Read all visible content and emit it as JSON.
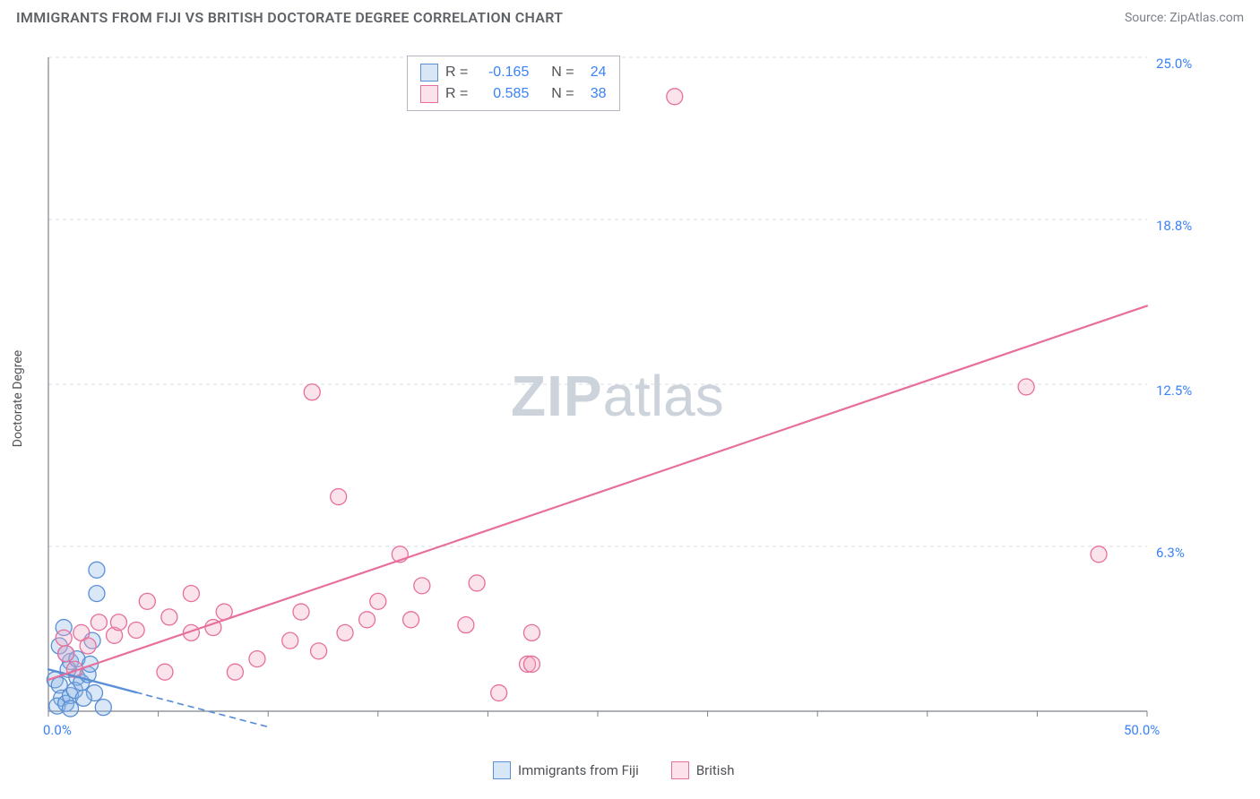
{
  "title": "IMMIGRANTS FROM FIJI VS BRITISH DOCTORATE DEGREE CORRELATION CHART",
  "source": "Source: ZipAtlas.com",
  "y_axis_label": "Doctorate Degree",
  "watermark": {
    "zip": "ZIP",
    "atlas": "atlas"
  },
  "chart": {
    "type": "scatter",
    "xlim": [
      0,
      50
    ],
    "ylim": [
      0,
      25
    ],
    "x_ticks": [
      0,
      5,
      10,
      15,
      20,
      25,
      30,
      35,
      40,
      45,
      50
    ],
    "x_tick_labels_shown": {
      "0": "0.0%",
      "50": "50.0%"
    },
    "y_ticks": [
      6.3,
      12.5,
      18.8,
      25.0
    ],
    "y_tick_labels": [
      "6.3%",
      "12.5%",
      "18.8%",
      "25.0%"
    ],
    "grid_color": "#d9dde4",
    "grid_dash": "4,4",
    "axis_color": "#7d828b",
    "background_color": "#ffffff",
    "marker_radius": 9,
    "marker_stroke_width": 1.3,
    "marker_fill_opacity": 0.32
  },
  "series": [
    {
      "name": "Immigrants from Fiji",
      "color_stroke": "#5a8fd6",
      "color_fill": "#8db4e2",
      "r": "-0.165",
      "n": "24",
      "trend": {
        "x1": 0,
        "y1": 1.6,
        "x2": 10,
        "y2": -0.6,
        "solid_until_x": 4.0,
        "width": 2.4
      },
      "points": [
        [
          0.3,
          1.2
        ],
        [
          0.5,
          1.0
        ],
        [
          0.6,
          0.5
        ],
        [
          0.4,
          0.2
        ],
        [
          0.8,
          0.3
        ],
        [
          1.0,
          0.6
        ],
        [
          1.3,
          1.3
        ],
        [
          1.0,
          1.9
        ],
        [
          0.5,
          2.5
        ],
        [
          0.8,
          2.2
        ],
        [
          1.2,
          0.8
        ],
        [
          1.5,
          1.1
        ],
        [
          1.8,
          1.4
        ],
        [
          2.0,
          2.7
        ],
        [
          2.1,
          0.7
        ],
        [
          2.5,
          0.15
        ],
        [
          2.2,
          5.4
        ],
        [
          2.2,
          4.5
        ],
        [
          0.7,
          3.2
        ],
        [
          0.9,
          1.6
        ],
        [
          1.3,
          2.0
        ],
        [
          1.6,
          0.5
        ],
        [
          1.0,
          0.1
        ],
        [
          1.9,
          1.8
        ]
      ]
    },
    {
      "name": "British",
      "color_stroke": "#e76f9d",
      "color_fill": "#f4a8c2",
      "r": "0.585",
      "n": "38",
      "trend": {
        "x1": 0,
        "y1": 1.2,
        "x2": 50,
        "y2": 15.5,
        "solid_until_x": 50,
        "width": 2.2
      },
      "points": [
        [
          0.7,
          2.8
        ],
        [
          0.8,
          2.2
        ],
        [
          1.2,
          1.6
        ],
        [
          1.5,
          3.0
        ],
        [
          1.8,
          2.5
        ],
        [
          2.3,
          3.4
        ],
        [
          3.0,
          2.9
        ],
        [
          3.2,
          3.4
        ],
        [
          4.0,
          3.1
        ],
        [
          4.5,
          4.2
        ],
        [
          5.5,
          3.6
        ],
        [
          5.3,
          1.5
        ],
        [
          6.5,
          4.5
        ],
        [
          6.5,
          3.0
        ],
        [
          7.5,
          3.2
        ],
        [
          8.0,
          3.8
        ],
        [
          8.5,
          1.5
        ],
        [
          9.5,
          2.0
        ],
        [
          11.0,
          2.7
        ],
        [
          11.5,
          3.8
        ],
        [
          12.0,
          12.2
        ],
        [
          12.3,
          2.3
        ],
        [
          13.2,
          8.2
        ],
        [
          13.5,
          3.0
        ],
        [
          14.5,
          3.5
        ],
        [
          15.0,
          4.2
        ],
        [
          16.0,
          6.0
        ],
        [
          16.5,
          3.5
        ],
        [
          17.0,
          4.8
        ],
        [
          19.0,
          3.3
        ],
        [
          19.5,
          4.9
        ],
        [
          20.5,
          0.7
        ],
        [
          21.8,
          1.8
        ],
        [
          22.0,
          3.0
        ],
        [
          22.0,
          1.8
        ],
        [
          28.5,
          23.5
        ],
        [
          44.5,
          12.4
        ],
        [
          47.8,
          6.0
        ]
      ]
    }
  ],
  "stats_legend": {
    "r_label": "R =",
    "n_label": "N ="
  },
  "bottom_legend": {
    "items": [
      "Immigrants from Fiji",
      "British"
    ]
  }
}
